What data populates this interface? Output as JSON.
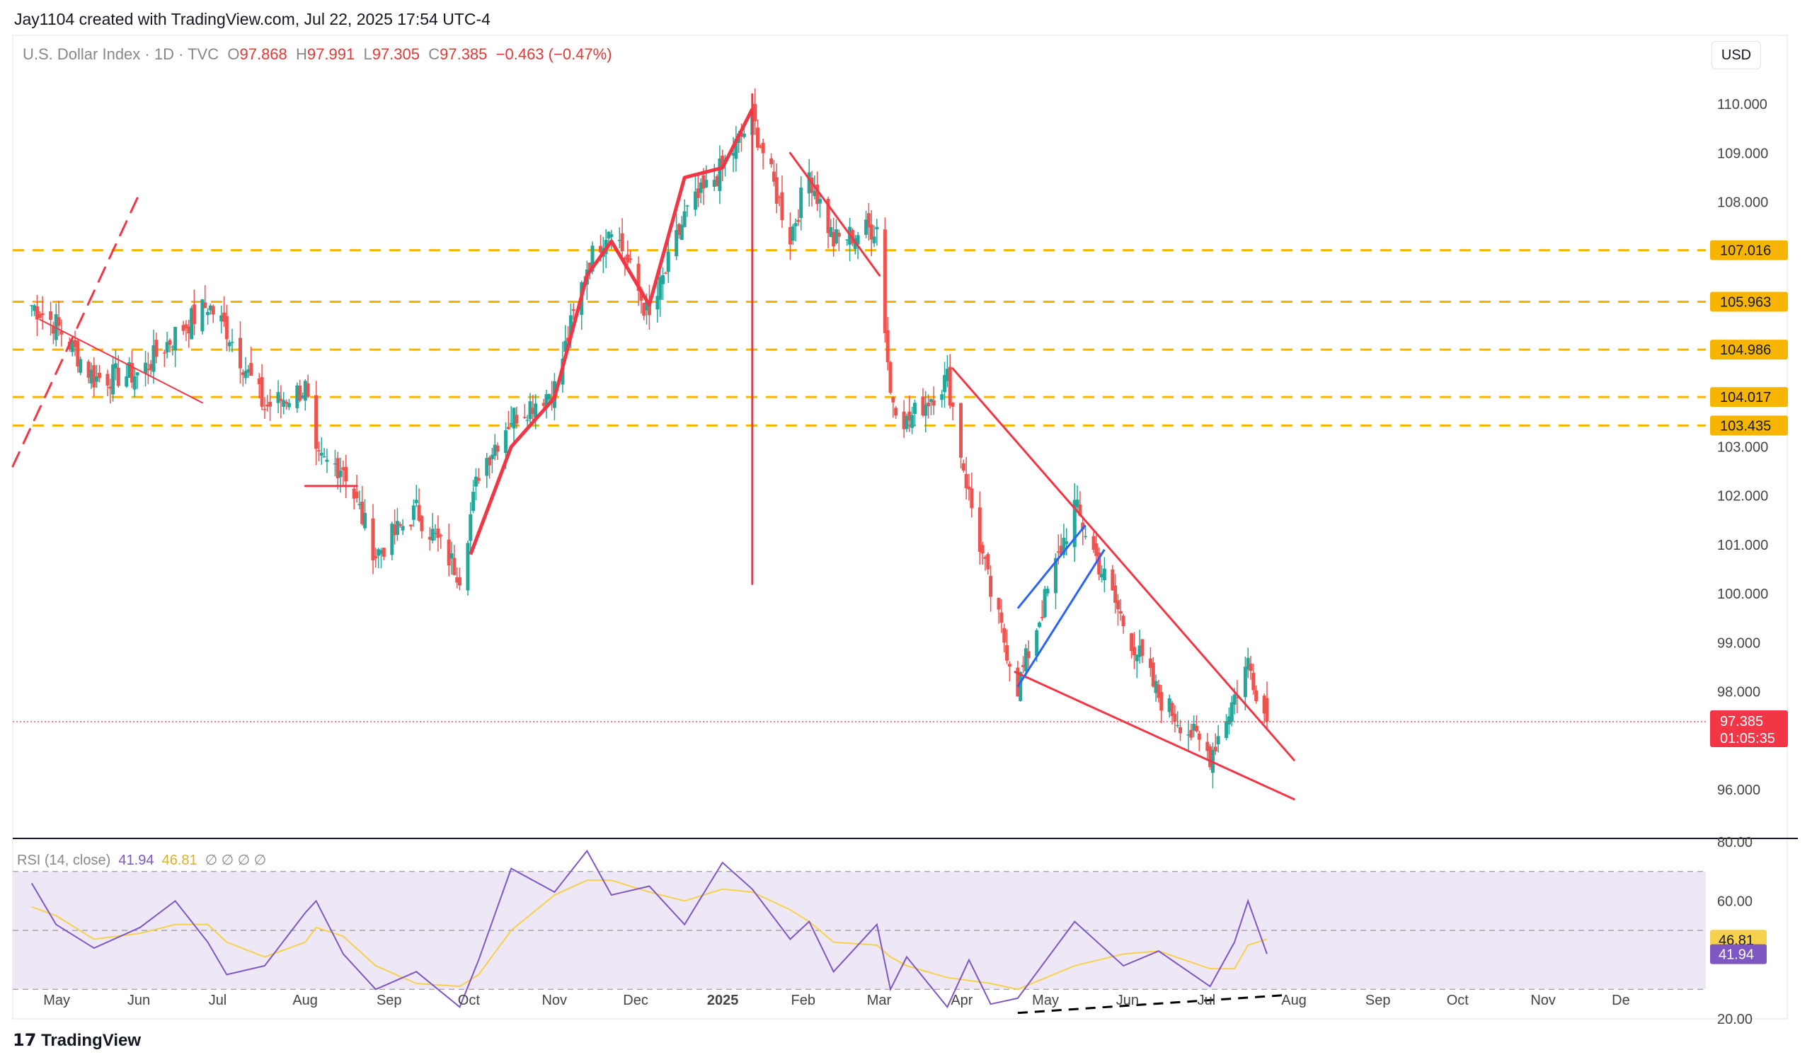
{
  "header": {
    "created_by": "Jay1104 created with TradingView.com, Jul 22, 2025 17:54 UTC-4",
    "symbol": "U.S. Dollar Index · 1D · TVC",
    "open_label": "O",
    "open": "97.868",
    "high_label": "H",
    "high": "97.991",
    "low_label": "L",
    "low": "97.305",
    "close_label": "C",
    "close": "97.385",
    "change": "−0.463 (−0.47%)",
    "currency": "USD"
  },
  "brand": "TradingView",
  "colors": {
    "up": "#26a69a",
    "down": "#ef5350",
    "trend": "#f23645",
    "level": "#f7b500",
    "rsi": "#7e57c2",
    "rsi_ma": "#f5d14d",
    "wedge": "#2962ff",
    "highlight": "#fff59d"
  },
  "chart_data": [
    {
      "type": "candlestick",
      "title": "U.S. Dollar Index · 1D · TVC",
      "x": [
        "2024-04-22",
        "2024-05-01",
        "2024-05-15",
        "2024-06-01",
        "2024-06-14",
        "2024-06-26",
        "2024-07-03",
        "2024-07-17",
        "2024-08-01",
        "2024-08-05",
        "2024-08-15",
        "2024-08-27",
        "2024-09-11",
        "2024-09-27",
        "2024-10-04",
        "2024-10-16",
        "2024-11-01",
        "2024-11-13",
        "2024-11-22",
        "2024-12-06",
        "2024-12-19",
        "2025-01-02",
        "2025-01-13",
        "2025-01-27",
        "2025-02-03",
        "2025-02-12",
        "2025-02-28",
        "2025-03-05",
        "2025-03-11",
        "2025-03-26",
        "2025-04-03",
        "2025-04-11",
        "2025-04-21",
        "2025-05-12",
        "2025-05-30",
        "2025-06-12",
        "2025-07-01",
        "2025-07-10",
        "2025-07-15",
        "2025-07-22"
      ],
      "close": [
        105.9,
        105.5,
        104.4,
        104.5,
        105.3,
        105.9,
        105.4,
        103.8,
        104.2,
        102.7,
        102.6,
        100.8,
        101.7,
        100.4,
        102.5,
        103.6,
        104.2,
        106.7,
        107.6,
        105.6,
        107.7,
        108.7,
        109.7,
        107.3,
        108.6,
        107.2,
        107.5,
        104.1,
        103.5,
        104.4,
        102.0,
        100.0,
        98.1,
        101.8,
        99.4,
        97.9,
        96.7,
        97.9,
        98.6,
        97.385
      ],
      "levels": [
        107.016,
        105.963,
        104.986,
        104.017,
        103.435
      ],
      "ylim": [
        95,
        111
      ],
      "y_ticks": [
        96.0,
        97.0,
        98.0,
        99.0,
        100.0,
        101.0,
        102.0,
        103.0,
        104.0,
        105.0,
        106.0,
        107.0,
        108.0,
        109.0,
        110.0
      ],
      "last_price": "97.385",
      "countdown": "01:05:35",
      "x_tick_labels": [
        "May",
        "Jun",
        "Jul",
        "Aug",
        "Sep",
        "Oct",
        "Nov",
        "Dec",
        "2025",
        "Feb",
        "Mar",
        "Apr",
        "May",
        "Jun",
        "Jul",
        "Aug",
        "Sep",
        "Oct",
        "Nov",
        "De"
      ]
    },
    {
      "type": "line",
      "title": "RSI (14, close)",
      "rsi_value": "41.94",
      "ma_value": "46.81",
      "rsi": [
        66,
        52,
        44,
        51,
        60,
        46,
        35,
        38,
        56,
        60,
        42,
        30,
        36,
        24,
        40,
        71,
        63,
        77,
        62,
        65,
        52,
        73,
        64,
        47,
        53,
        36,
        52,
        30,
        41,
        24,
        40,
        25,
        27,
        53,
        38,
        43,
        31,
        46,
        60,
        42
      ],
      "rsi_ma": [
        58,
        55,
        47,
        49,
        52,
        52,
        46,
        41,
        46,
        51,
        48,
        38,
        32,
        31,
        35,
        50,
        62,
        67,
        67,
        63,
        60,
        64,
        63,
        57,
        53,
        46,
        45,
        41,
        38,
        34,
        33,
        32,
        30,
        38,
        42,
        43,
        37,
        37,
        45,
        47
      ],
      "ylim": [
        20,
        80
      ],
      "y_ticks": [
        20.0,
        60.0,
        80.0
      ],
      "band": [
        30,
        70
      ],
      "divergence_note": ""
    }
  ]
}
